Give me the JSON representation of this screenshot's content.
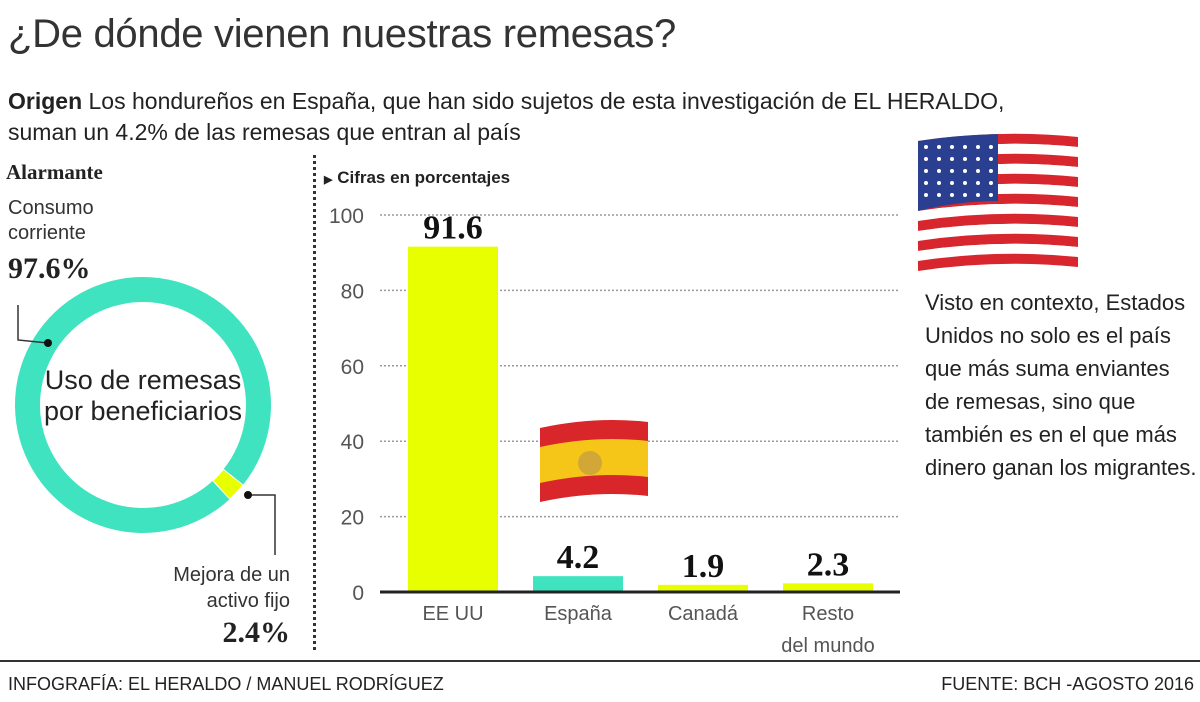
{
  "title": "¿De dónde vienen nuestras remesas?",
  "lead": {
    "label": "Origen",
    "text": " Los hondureños en España, que han sido sujetos de esta investigación de EL HERALDO, suman un 4.2% de las remesas que entran al país"
  },
  "colors": {
    "teal": "#3fe3c0",
    "lime": "#e8ff00"
  },
  "donut": {
    "heading": "Alarmante",
    "center_label": "Uso de remesas por beneficiarios",
    "segments": [
      {
        "label": "Consumo corriente",
        "value_label": "97.6%",
        "value": 97.6
      },
      {
        "label": "Mejora de un activo fijo",
        "value_label": "2.4%",
        "value": 2.4
      }
    ]
  },
  "chart_data": [
    {
      "type": "pie",
      "title": "Uso de remesas por beneficiarios",
      "categories": [
        "Consumo corriente",
        "Mejora de un activo fijo"
      ],
      "values": [
        97.6,
        2.4
      ]
    },
    {
      "type": "bar",
      "subtitle": "Cifras en porcentajes",
      "categories": [
        "EE UU",
        "España",
        "Canadá",
        "Resto del mundo"
      ],
      "values": [
        91.6,
        4.2,
        1.9,
        2.3
      ],
      "value_labels": [
        "91.6",
        "4.2",
        "1.9",
        "2.3"
      ],
      "bar_colors": [
        "#e8ff00",
        "#3fe3c0",
        "#e8ff00",
        "#e8ff00"
      ],
      "yticks": [
        "0",
        "20",
        "40",
        "60",
        "80",
        "100"
      ],
      "ylim": [
        0,
        100
      ],
      "grid": true
    }
  ],
  "context_text": "Visto en contexto, Estados Unidos no solo es el país que más suma enviantes de remesas, sino que también es en el que más dinero ganan los migrantes.",
  "footer": {
    "credit": "INFOGRAFÍA: EL HERALDO / MANUEL RODRÍGUEZ",
    "source": "FUENTE: BCH -AGOSTO 2016"
  },
  "icons": {
    "us_flag": "us-flag-icon",
    "spain_flag": "spain-flag-icon"
  }
}
